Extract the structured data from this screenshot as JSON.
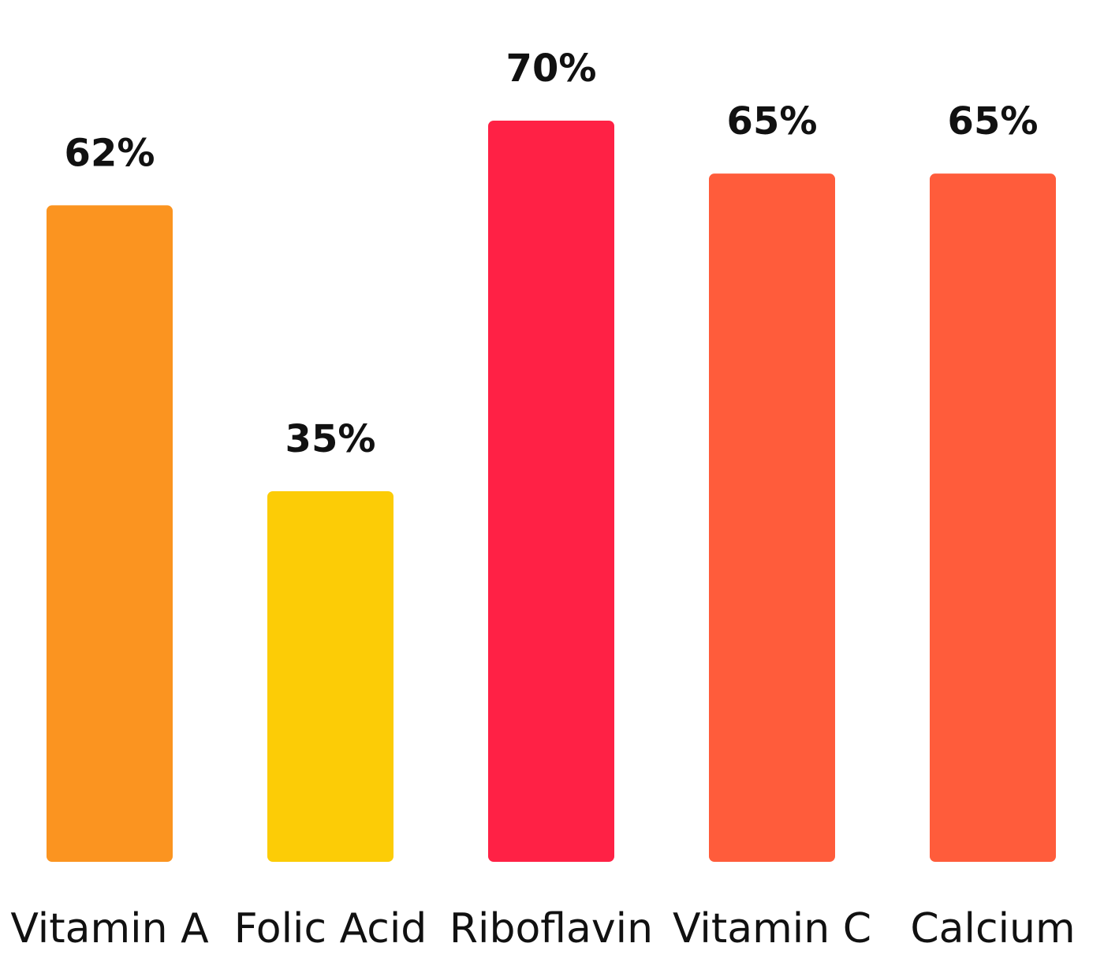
{
  "chart_data": {
    "type": "bar",
    "categories": [
      "Vitamin A",
      "Folic Acid",
      "Riboflavin",
      "Vitamin C",
      "Calcium"
    ],
    "values": [
      62,
      35,
      70,
      65,
      65
    ],
    "value_labels": [
      "62%",
      "35%",
      "70%",
      "65%",
      "65%"
    ],
    "colors": [
      "#FB9420",
      "#FCCC06",
      "#FF2145",
      "#FF5C3B",
      "#FF5C3B"
    ],
    "ylim": [
      0,
      70
    ],
    "grid": false,
    "title": "",
    "xlabel": "",
    "ylabel": ""
  }
}
